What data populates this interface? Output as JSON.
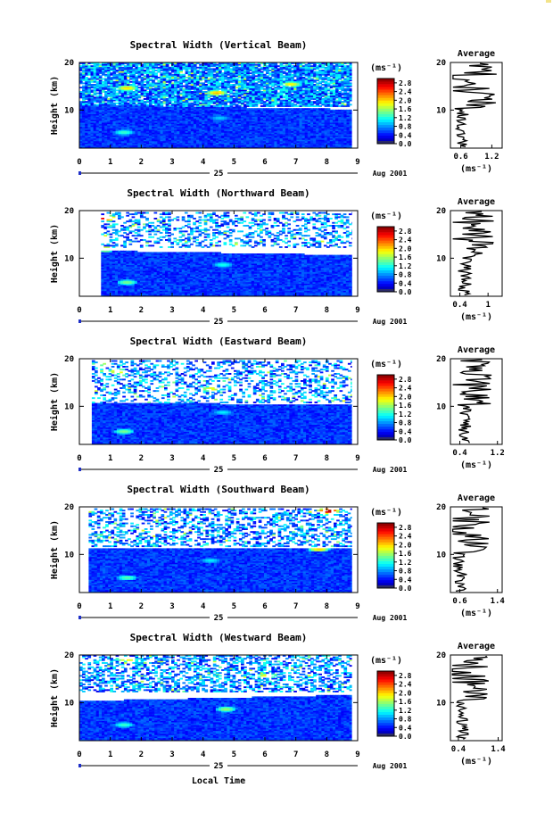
{
  "figure": {
    "xlabel": "Local Time",
    "date_day": "25",
    "date_label": "Aug 2001",
    "ylabel": "Height (km)",
    "unit": "(ms⁻¹)",
    "colorbar_ticks": [
      "0.0",
      "0.4",
      "0.8",
      "1.2",
      "1.6",
      "2.0",
      "2.4",
      "2.8"
    ],
    "average_title": "Average",
    "average_xlabel": "(ms⁻¹)"
  },
  "chart_data": [
    {
      "type": "heatmap",
      "title": "Spectral Width (Vertical Beam)",
      "xlabel": "Local Time",
      "ylabel": "Height (km)",
      "xlim": [
        0,
        9
      ],
      "ylim": [
        2,
        20
      ],
      "xticks": [
        0,
        1,
        2,
        3,
        4,
        5,
        6,
        7,
        8,
        9
      ],
      "yticks": [
        10,
        20
      ],
      "colorbar": {
        "min": 0.0,
        "max": 3.0,
        "ticks": [
          0.0,
          0.4,
          0.8,
          1.2,
          1.6,
          2.0,
          2.4,
          2.8
        ],
        "unit": "ms-1"
      },
      "data_start": 0.0,
      "data_end": 8.8,
      "upper_coverage": 0.9,
      "upper_low": 10.6,
      "upper_high": 19.8,
      "lower_top": [
        [
          0,
          11.0
        ],
        [
          9,
          10.0
        ]
      ],
      "hotspots": [
        {
          "t": 1.4,
          "h": 5.2,
          "v": 1.3
        },
        {
          "t": 4.5,
          "h": 8.2,
          "v": 1.0
        },
        {
          "t": 1.5,
          "h": 14.5,
          "v": 2.0
        },
        {
          "t": 4.4,
          "h": 13.5,
          "v": 2.1
        },
        {
          "t": 6.8,
          "h": 15.3,
          "v": 1.9
        }
      ],
      "average": {
        "xlim": [
          0.4,
          1.4
        ],
        "xticks": [
          0.6,
          1.2
        ],
        "ylim": [
          2,
          20
        ],
        "yticks": [
          10,
          20
        ],
        "mean": 0.6,
        "upper_mean": 0.95
      },
      "seed": 3
    },
    {
      "type": "heatmap",
      "title": "Spectral Width (Northward Beam)",
      "xlabel": "Local Time",
      "ylabel": "Height (km)",
      "xlim": [
        0,
        9
      ],
      "ylim": [
        2,
        20
      ],
      "xticks": [
        0,
        1,
        2,
        3,
        4,
        5,
        6,
        7,
        8,
        9
      ],
      "yticks": [
        10,
        20
      ],
      "colorbar": {
        "min": 0.0,
        "max": 3.0,
        "ticks": [
          0.0,
          0.4,
          0.8,
          1.2,
          1.6,
          2.0,
          2.4,
          2.8
        ],
        "unit": "ms-1"
      },
      "data_start": 0.7,
      "data_end": 8.8,
      "upper_coverage": 0.35,
      "upper_low": 12.0,
      "upper_high": 19.5,
      "lower_top": [
        [
          0,
          11.5
        ],
        [
          9,
          10.5
        ]
      ],
      "hotspots": [
        {
          "t": 1.5,
          "h": 4.8,
          "v": 1.5
        },
        {
          "t": 4.6,
          "h": 8.5,
          "v": 1.2
        },
        {
          "t": 0.8,
          "h": 18.3,
          "v": 2.8
        },
        {
          "t": 0.8,
          "h": 11.8,
          "v": 2.2
        },
        {
          "t": 7.7,
          "h": 11.6,
          "v": 2.1
        }
      ],
      "average": {
        "xlim": [
          0.2,
          1.3
        ],
        "xticks": [
          0.4,
          1.0
        ],
        "ylim": [
          2,
          20
        ],
        "yticks": [
          10,
          20
        ],
        "mean": 0.5,
        "upper_mean": 0.8
      },
      "seed": 11
    },
    {
      "type": "heatmap",
      "title": "Spectral Width (Eastward Beam)",
      "xlabel": "Local Time",
      "ylabel": "Height (km)",
      "xlim": [
        0,
        9
      ],
      "ylim": [
        2,
        20
      ],
      "xticks": [
        0,
        1,
        2,
        3,
        4,
        5,
        6,
        7,
        8,
        9
      ],
      "yticks": [
        10,
        20
      ],
      "colorbar": {
        "min": 0.0,
        "max": 3.0,
        "ticks": [
          0.0,
          0.4,
          0.8,
          1.2,
          1.6,
          2.0,
          2.4,
          2.8
        ],
        "unit": "ms-1"
      },
      "data_start": 0.4,
      "data_end": 8.8,
      "upper_coverage": 0.35,
      "upper_low": 10.5,
      "upper_high": 19.5,
      "lower_top": [
        [
          0,
          10.5
        ],
        [
          9,
          10.3
        ]
      ],
      "hotspots": [
        {
          "t": 1.4,
          "h": 4.6,
          "v": 1.5
        },
        {
          "t": 4.6,
          "h": 8.6,
          "v": 1.1
        },
        {
          "t": 1.2,
          "h": 17.2,
          "v": 2.0
        },
        {
          "t": 4.2,
          "h": 13.5,
          "v": 1.9
        }
      ],
      "average": {
        "xlim": [
          0.2,
          1.3
        ],
        "xticks": [
          0.4,
          1.2
        ],
        "ylim": [
          2,
          20
        ],
        "yticks": [
          10,
          20
        ],
        "mean": 0.5,
        "upper_mean": 0.75
      },
      "seed": 21
    },
    {
      "type": "heatmap",
      "title": "Spectral Width (Southward Beam)",
      "xlabel": "Local Time",
      "ylabel": "Height (km)",
      "xlim": [
        0,
        9
      ],
      "ylim": [
        2,
        20
      ],
      "xticks": [
        0,
        1,
        2,
        3,
        4,
        5,
        6,
        7,
        8,
        9
      ],
      "yticks": [
        10,
        20
      ],
      "colorbar": {
        "min": 0.0,
        "max": 3.0,
        "ticks": [
          0.0,
          0.4,
          0.8,
          1.2,
          1.6,
          2.0,
          2.4,
          2.8
        ],
        "unit": "ms-1"
      },
      "data_start": 0.3,
      "data_end": 8.8,
      "upper_coverage": 0.4,
      "upper_low": 11.5,
      "upper_high": 19.5,
      "lower_top": [
        [
          0,
          11.0
        ],
        [
          9,
          11.2
        ]
      ],
      "hotspots": [
        {
          "t": 1.5,
          "h": 5.0,
          "v": 1.4
        },
        {
          "t": 4.2,
          "h": 8.6,
          "v": 1.1
        },
        {
          "t": 8.0,
          "h": 19.0,
          "v": 2.9
        },
        {
          "t": 7.7,
          "h": 11.0,
          "v": 2.0
        }
      ],
      "average": {
        "xlim": [
          0.4,
          1.5
        ],
        "xticks": [
          0.6,
          1.4
        ],
        "ylim": [
          2,
          20
        ],
        "yticks": [
          10,
          20
        ],
        "mean": 0.6,
        "upper_mean": 0.9
      },
      "seed": 31
    },
    {
      "type": "heatmap",
      "title": "Spectral Width (Westward Beam)",
      "xlabel": "Local Time",
      "ylabel": "Height (km)",
      "xlim": [
        0,
        9
      ],
      "ylim": [
        2,
        20
      ],
      "xticks": [
        0,
        1,
        2,
        3,
        4,
        5,
        6,
        7,
        8,
        9
      ],
      "yticks": [
        10,
        20
      ],
      "colorbar": {
        "min": 0.0,
        "max": 3.0,
        "ticks": [
          0.0,
          0.4,
          0.8,
          1.2,
          1.6,
          2.0,
          2.4,
          2.8
        ],
        "unit": "ms-1"
      },
      "data_start": 0.0,
      "data_end": 8.8,
      "upper_coverage": 0.5,
      "upper_low": 12.0,
      "upper_high": 20.0,
      "lower_top": [
        [
          0,
          10.2
        ],
        [
          9,
          11.5
        ]
      ],
      "hotspots": [
        {
          "t": 1.4,
          "h": 5.2,
          "v": 1.3
        },
        {
          "t": 4.7,
          "h": 8.5,
          "v": 1.6
        },
        {
          "t": 1.5,
          "h": 19.0,
          "v": 2.0
        },
        {
          "t": 6.0,
          "h": 15.5,
          "v": 1.9
        }
      ],
      "average": {
        "xlim": [
          0.2,
          1.5
        ],
        "xticks": [
          0.4,
          1.4
        ],
        "ylim": [
          2,
          20
        ],
        "yticks": [
          10,
          20
        ],
        "mean": 0.5,
        "upper_mean": 0.85
      },
      "seed": 41
    }
  ]
}
